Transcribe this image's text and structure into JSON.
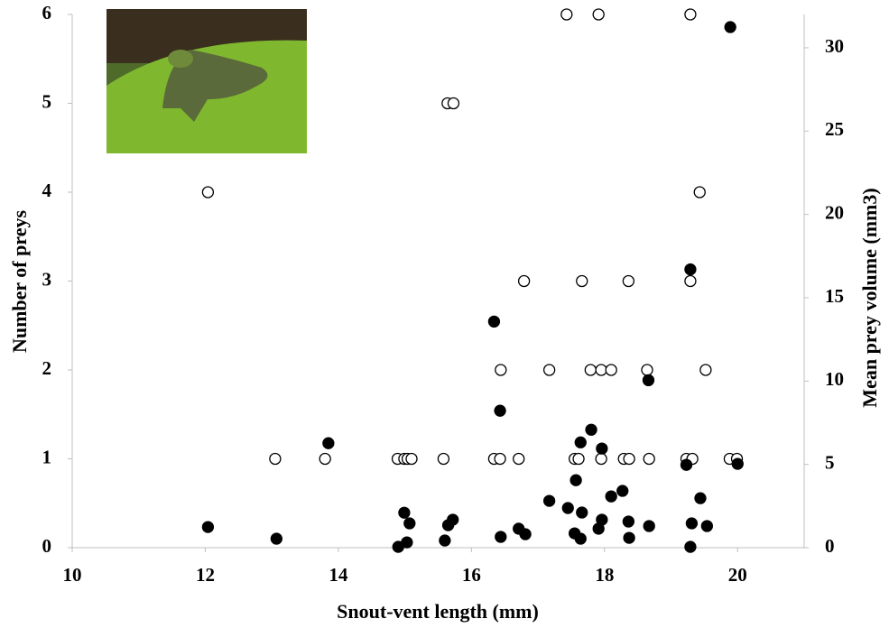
{
  "chart_data": {
    "type": "scatter",
    "x_label": "Snout-vent length (mm)",
    "y_label": "Number of preys",
    "y2_label": "Mean prey volume (mm3)",
    "xlim": [
      10,
      21
    ],
    "xticks": [
      10,
      12,
      14,
      16,
      18,
      20
    ],
    "ylim": [
      0,
      6
    ],
    "yticks": [
      0,
      1,
      2,
      3,
      4,
      5,
      6
    ],
    "y2lim": [
      0,
      32
    ],
    "y2ticks": [
      0,
      5,
      10,
      15,
      20,
      25,
      30
    ],
    "series": [
      {
        "marker": "open",
        "color": "#000000",
        "x": [
          12.04,
          13.05,
          13.8,
          14.89,
          14.99,
          15.04,
          15.1,
          15.58,
          16.34,
          16.43,
          16.71,
          17.55,
          17.61,
          17.95,
          18.29,
          18.37,
          18.67,
          19.23,
          19.32,
          19.88,
          19.99,
          16.44,
          17.17,
          17.79,
          17.95,
          18.1,
          18.64,
          19.52,
          16.79,
          17.66,
          18.36,
          19.29,
          19.43,
          15.64,
          15.73,
          17.43,
          17.91,
          19.29
        ],
        "values": [
          4,
          1,
          1,
          1,
          1,
          1,
          1,
          1,
          1,
          1,
          1,
          1,
          1,
          1,
          1,
          1,
          1,
          1,
          1,
          1,
          1,
          2,
          2,
          2,
          2,
          2,
          2,
          2,
          3,
          3,
          3,
          3,
          4,
          5,
          5,
          6,
          6,
          6
        ]
      },
      {
        "marker": "filled",
        "color": "#000000",
        "axis": "y2",
        "x": [
          12.04,
          13.07,
          13.85,
          14.9,
          14.99,
          15.07,
          15.03,
          15.6,
          15.65,
          15.72,
          16.34,
          16.43,
          16.44,
          16.71,
          16.81,
          17.17,
          17.45,
          17.57,
          17.64,
          17.66,
          17.55,
          17.64,
          17.8,
          17.96,
          17.96,
          17.91,
          18.1,
          18.27,
          18.36,
          18.37,
          18.67,
          18.66,
          19.23,
          19.29,
          19.31,
          19.29,
          19.44,
          19.54,
          19.89,
          20.0
        ],
        "values": [
          1.24,
          0.54,
          6.27,
          0.05,
          2.1,
          1.46,
          0.32,
          0.43,
          1.35,
          1.68,
          13.57,
          8.22,
          0.65,
          1.14,
          0.81,
          2.81,
          2.38,
          4.05,
          6.32,
          2.11,
          0.86,
          0.54,
          7.08,
          5.95,
          1.68,
          1.14,
          3.08,
          3.41,
          1.57,
          0.59,
          1.3,
          10.05,
          4.97,
          16.7,
          1.46,
          0.05,
          2.97,
          1.3,
          31.24,
          5.03
        ]
      }
    ]
  }
}
